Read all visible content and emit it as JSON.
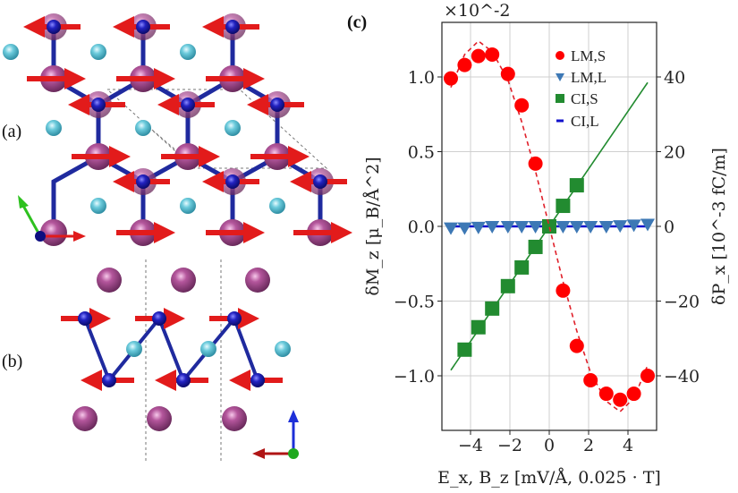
{
  "panels": {
    "a_label": "(a)",
    "b_label": "(b)",
    "c_label": "(c)"
  },
  "structure": {
    "colors": {
      "large_atom": "#a24f8c",
      "small_atom": "#1a1aa8",
      "ligand_atom": "#5bc3d6",
      "bond": "#1f2a9e",
      "spin_arrow": "#e21b1b",
      "axis_x": "#e01b1b",
      "axis_y": "#2ec11f",
      "axis_z": "#1d2fd8"
    }
  },
  "chart_data": {
    "type": "scatter",
    "title": "",
    "xlabel": "E_x, B_z  [mV/Å, 0.025 · T]",
    "ylabel": "δM_z [μ_B/Å^2]",
    "ylabel_right": "δP_x [10^-3 fC/m]",
    "y_multiplier": "×10^-2",
    "xlim": [
      -5.5,
      5.5
    ],
    "ylim": [
      -1.38,
      1.37
    ],
    "ylim_right": [
      -55,
      55
    ],
    "xticks": [
      "-4",
      "-2",
      "0",
      "2",
      "4"
    ],
    "yticks": [
      "-1.0",
      "-0.5",
      "0.0",
      "0.5",
      "1.0"
    ],
    "yticks_right": [
      "-40",
      "-20",
      "0",
      "20",
      "40"
    ],
    "grid": true,
    "legend_position": "upper right",
    "legend": [
      "LM,S",
      "LM,L",
      "CI,S",
      "CI,L"
    ],
    "series": [
      {
        "name": "LM,S",
        "axis": "left",
        "marker": "circle",
        "color": "#ff0000",
        "x": [
          -5.0,
          -4.3,
          -3.6,
          -2.9,
          -2.1,
          -1.4,
          -0.7,
          0.7,
          1.4,
          2.1,
          2.9,
          3.6,
          4.3,
          5.0
        ],
        "values": [
          0.99,
          1.08,
          1.14,
          1.15,
          1.02,
          0.81,
          0.42,
          -0.43,
          -0.8,
          -1.03,
          -1.12,
          -1.16,
          -1.12,
          -1.0
        ]
      },
      {
        "name": "LM,S fit",
        "axis": "left",
        "style": "dashed",
        "color": "#e0202a",
        "x": [
          -5.0,
          -4.3,
          -3.6,
          -2.9,
          -2.1,
          -1.4,
          -0.7,
          0.0,
          0.7,
          1.4,
          2.1,
          2.9,
          3.6,
          4.3,
          5.0
        ],
        "values": [
          0.93,
          1.15,
          1.24,
          1.17,
          0.98,
          0.7,
          0.37,
          0.0,
          -0.37,
          -0.7,
          -0.98,
          -1.17,
          -1.24,
          -1.15,
          -0.93
        ]
      },
      {
        "name": "LM,L",
        "axis": "left",
        "marker": "triangle-down",
        "color": "#3d78b5",
        "x": [
          -5.0,
          -4.3,
          -3.6,
          -2.9,
          -2.1,
          -1.4,
          -0.7,
          0.0,
          0.7,
          1.4,
          2.1,
          2.9,
          3.6,
          4.3,
          5.0
        ],
        "values": [
          -0.01,
          -0.01,
          -0.005,
          0.0,
          0.0,
          0.0,
          0.0,
          0.0,
          0.0,
          0.0,
          0.0,
          0.0,
          0.005,
          0.01,
          0.015
        ]
      },
      {
        "name": "CI,S",
        "axis": "right",
        "marker": "square",
        "color": "#228b30",
        "x": [
          -4.3,
          -3.6,
          -2.9,
          -2.1,
          -1.4,
          -0.7,
          0.0,
          0.7,
          1.4
        ],
        "values": [
          -33,
          -27,
          -22,
          -16,
          -11,
          -5.5,
          0,
          5.5,
          11
        ]
      },
      {
        "name": "CI,S fit",
        "axis": "right",
        "style": "solid",
        "color": "#228b30",
        "x": [
          -5.0,
          5.0
        ],
        "values": [
          -38.5,
          38.5
        ]
      },
      {
        "name": "CI,L",
        "axis": "right",
        "style": "solid",
        "color": "#1010cc",
        "x": [
          -5.0,
          5.0
        ],
        "values": [
          0,
          0
        ]
      }
    ]
  }
}
